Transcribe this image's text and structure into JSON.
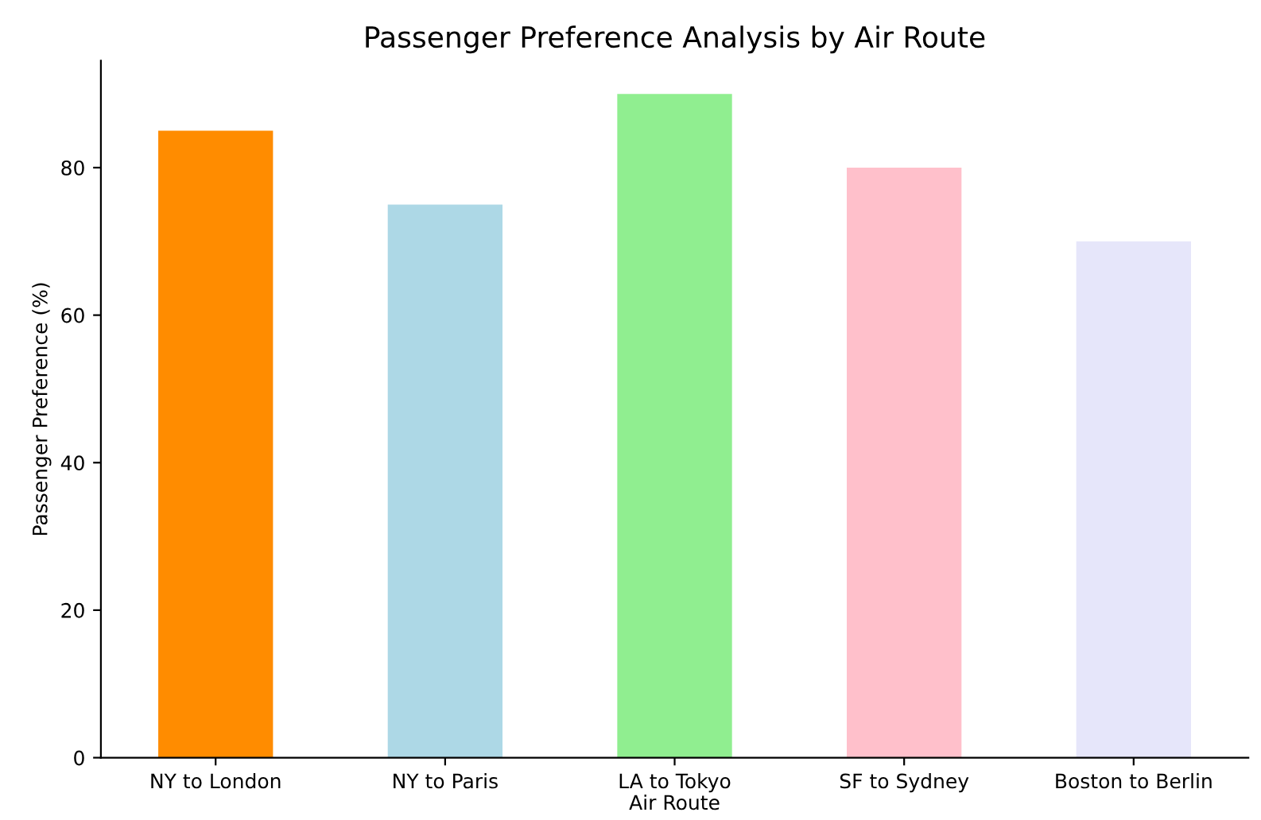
{
  "chart_data": {
    "type": "bar",
    "title": "Passenger Preference Analysis by Air Route",
    "xlabel": "Air Route",
    "ylabel": "Passenger Preference (%)",
    "categories": [
      "NY to London",
      "NY to Paris",
      "LA to Tokyo",
      "SF to Sydney",
      "Boston to Berlin"
    ],
    "values": [
      85,
      75,
      90,
      80,
      70
    ],
    "colors": [
      "#ff8c00",
      "#add8e6",
      "#90ee90",
      "#ffc0cb",
      "#e6e6fa"
    ],
    "ylim": [
      0,
      94.5
    ],
    "yticks": [
      0,
      20,
      40,
      60,
      80
    ],
    "grid": false
  }
}
